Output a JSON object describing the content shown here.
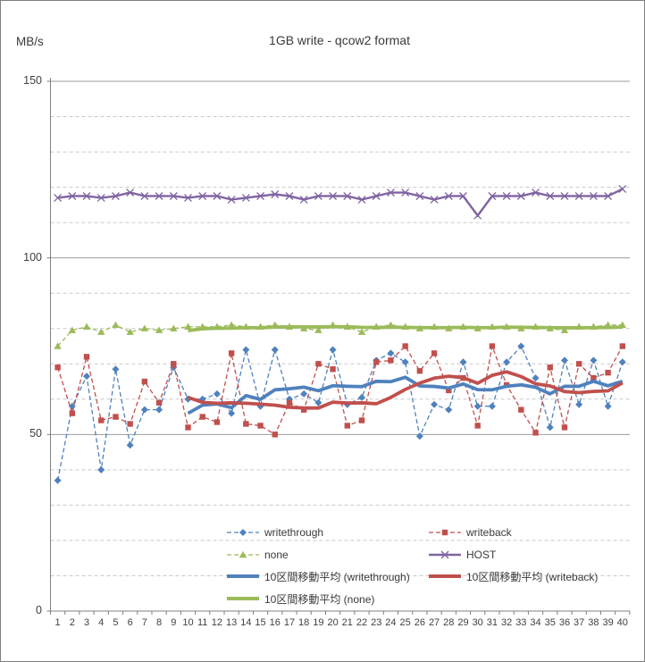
{
  "title": "1GB write - qcow2 format",
  "y_axis": {
    "unit_label": "MB/s",
    "ticks": [
      0,
      50,
      100,
      150
    ],
    "max": 150,
    "minor_step": 10
  },
  "x_axis": {
    "categories": [
      1,
      2,
      3,
      4,
      5,
      6,
      7,
      8,
      9,
      10,
      11,
      12,
      13,
      14,
      15,
      16,
      17,
      18,
      19,
      20,
      21,
      22,
      23,
      24,
      25,
      26,
      27,
      28,
      29,
      30,
      31,
      32,
      33,
      34,
      35,
      36,
      37,
      38,
      39,
      40
    ]
  },
  "colors": {
    "writethrough": "#4F81BD",
    "writeback": "#C0504D",
    "none": "#9BBB59",
    "host": "#8064A2",
    "grid_major": "#9B9B9B",
    "grid_minor": "#C9C9C9",
    "axis": "#808080",
    "text": "#404040"
  },
  "legend": {
    "items": [
      {
        "id": "writethrough",
        "label": "writethrough",
        "color": "#4F81BD",
        "line": "dashed",
        "marker": "diamond",
        "col": 0,
        "row": 0
      },
      {
        "id": "writeback",
        "label": "writeback",
        "color": "#C0504D",
        "line": "dashed",
        "marker": "square",
        "col": 1,
        "row": 0
      },
      {
        "id": "none",
        "label": "none",
        "color": "#9BBB59",
        "line": "dashed",
        "marker": "triangle",
        "col": 0,
        "row": 1
      },
      {
        "id": "host",
        "label": "HOST",
        "color": "#8064A2",
        "line": "solid",
        "marker": "x",
        "col": 1,
        "row": 1
      },
      {
        "id": "ma-writethrough",
        "label": "10区間移動平均 (writethrough)",
        "color": "#4F81BD",
        "line": "thick",
        "marker": "none",
        "col": 0,
        "row": 2
      },
      {
        "id": "ma-writeback",
        "label": "10区間移動平均 (writeback)",
        "color": "#C0504D",
        "line": "thick",
        "marker": "none",
        "col": 1,
        "row": 2
      },
      {
        "id": "ma-none",
        "label": "10区間移動平均 (none)",
        "color": "#9BBB59",
        "line": "thick",
        "marker": "none",
        "col": 0,
        "row": 3
      }
    ]
  },
  "chart_data": {
    "type": "line",
    "title": "1GB write - qcow2 format",
    "ylabel": "MB/s",
    "ylim": [
      0,
      150
    ],
    "ytick_major": 50,
    "ytick_minor": 10,
    "grid": "horizontal",
    "legend_position": "inside-bottom",
    "x": [
      1,
      2,
      3,
      4,
      5,
      6,
      7,
      8,
      9,
      10,
      11,
      12,
      13,
      14,
      15,
      16,
      17,
      18,
      19,
      20,
      21,
      22,
      23,
      24,
      25,
      26,
      27,
      28,
      29,
      30,
      31,
      32,
      33,
      34,
      35,
      36,
      37,
      38,
      39,
      40
    ],
    "series": [
      {
        "name": "writethrough",
        "style": "dashed",
        "marker": "diamond",
        "values": [
          37,
          58,
          66.5,
          40,
          68.5,
          47,
          57,
          57,
          69,
          60,
          60,
          61.5,
          56,
          74,
          58,
          74,
          60,
          61.5,
          59,
          74,
          58.5,
          60.5,
          71,
          73,
          70.5,
          49.5,
          58.5,
          57,
          70.5,
          58,
          58,
          70.5,
          75,
          66,
          52,
          71,
          58.5,
          71,
          58,
          70.5
        ]
      },
      {
        "name": "writeback",
        "style": "dashed",
        "marker": "square",
        "values": [
          69,
          56,
          72,
          54,
          55,
          53,
          65,
          59,
          70,
          52,
          55,
          53.5,
          73,
          53,
          52.5,
          50,
          59,
          57,
          70,
          68.5,
          52.5,
          54,
          70.5,
          71,
          75,
          68,
          73,
          62.5,
          66,
          52.5,
          75,
          64,
          57,
          50.5,
          69,
          52,
          70,
          66,
          67.5,
          75
        ]
      },
      {
        "name": "none",
        "style": "dashed",
        "marker": "triangle",
        "values": [
          75,
          79.5,
          80.5,
          79,
          81,
          79,
          80,
          79.5,
          80,
          80.5,
          80.5,
          80.5,
          81,
          80.5,
          80.5,
          81,
          80.5,
          80,
          79.5,
          81,
          80.5,
          79,
          80.5,
          81,
          80.5,
          80,
          80.5,
          80,
          80.5,
          80,
          80.5,
          80.5,
          80,
          80.5,
          80,
          79.5,
          80.5,
          80.5,
          81,
          81
        ]
      },
      {
        "name": "HOST",
        "style": "solid",
        "marker": "x",
        "values": [
          117,
          117.5,
          117.5,
          117,
          117.5,
          118.5,
          117.5,
          117.5,
          117.5,
          117,
          117.5,
          117.5,
          116.5,
          117,
          117.5,
          118,
          117.5,
          116.5,
          117.5,
          117.5,
          117.5,
          116.5,
          117.5,
          118.5,
          118.5,
          117.5,
          116.5,
          117.5,
          117.5,
          112,
          117.5,
          117.5,
          117.5,
          118.5,
          117.5,
          117.5,
          117.5,
          117.5,
          117.5,
          119.5
        ]
      }
    ],
    "derived_series": [
      {
        "name": "10区間移動平均 (writethrough)",
        "source": "writethrough",
        "type": "moving_average",
        "period": 10
      },
      {
        "name": "10区間移動平均 (writeback)",
        "source": "writeback",
        "type": "moving_average",
        "period": 10
      },
      {
        "name": "10区間移動平均 (none)",
        "source": "none",
        "type": "moving_average",
        "period": 10
      }
    ]
  }
}
